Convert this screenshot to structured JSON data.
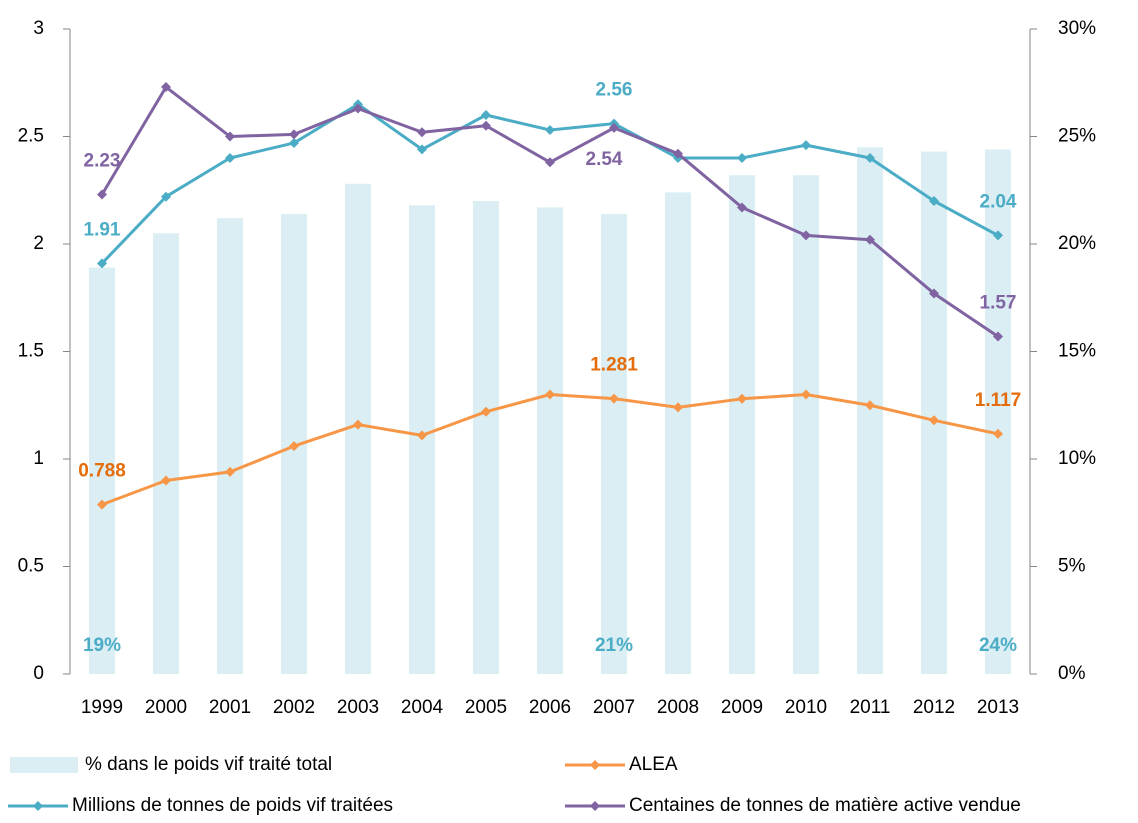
{
  "chart_data": {
    "type": "bar-line",
    "categories": [
      "1999",
      "2000",
      "2001",
      "2002",
      "2003",
      "2004",
      "2005",
      "2006",
      "2007",
      "2008",
      "2009",
      "2010",
      "2011",
      "2012",
      "2013"
    ],
    "ylim": [
      0,
      3
    ],
    "yticks": [
      0,
      0.5,
      1,
      1.5,
      2,
      2.5,
      3
    ],
    "y2lim": [
      0,
      30
    ],
    "y2ticks": [
      {
        "value": 0,
        "label": "0%"
      },
      {
        "value": 5,
        "label": "5%"
      },
      {
        "value": 10,
        "label": "10%"
      },
      {
        "value": 15,
        "label": "15%"
      },
      {
        "value": 20,
        "label": "20%"
      },
      {
        "value": 25,
        "label": "25%"
      },
      {
        "value": 30,
        "label": "30%"
      }
    ],
    "series": [
      {
        "name": "% dans le poids vif traité total",
        "type": "bar",
        "axis": "y2",
        "color": "#daeef3",
        "label_color": "#4bacc6",
        "values": [
          18.9,
          20.5,
          21.2,
          21.4,
          22.8,
          21.8,
          22.0,
          21.7,
          21.4,
          22.4,
          23.2,
          23.2,
          24.5,
          24.3,
          24.4
        ],
        "value_labels": [
          "19%",
          null,
          null,
          null,
          null,
          null,
          null,
          null,
          "21%",
          null,
          null,
          null,
          null,
          null,
          "24%"
        ]
      },
      {
        "name": "ALEA",
        "type": "line",
        "color": "#f79646",
        "label_color": "#e46c0a",
        "values": [
          0.788,
          0.9,
          0.94,
          1.06,
          1.16,
          1.11,
          1.22,
          1.3,
          1.281,
          1.24,
          1.28,
          1.3,
          1.25,
          1.18,
          1.117
        ],
        "value_labels": [
          "0.788",
          null,
          null,
          null,
          null,
          null,
          null,
          null,
          "1.281",
          null,
          null,
          null,
          null,
          null,
          "1.117"
        ]
      },
      {
        "name": "Millions de tonnes de poids vif traitées",
        "type": "line",
        "color": "#4bacc6",
        "label_color": "#4bacc6",
        "values": [
          1.91,
          2.22,
          2.4,
          2.47,
          2.65,
          2.44,
          2.6,
          2.53,
          2.56,
          2.4,
          2.4,
          2.46,
          2.4,
          2.2,
          2.04
        ],
        "value_labels": [
          "1.91",
          null,
          null,
          null,
          null,
          null,
          null,
          null,
          "2.56",
          null,
          null,
          null,
          null,
          null,
          "2.04"
        ]
      },
      {
        "name": "Centaines de tonnes de matière active vendue",
        "type": "line",
        "color": "#8064a2",
        "label_color": "#8064a2",
        "values": [
          2.23,
          2.73,
          2.5,
          2.51,
          2.63,
          2.52,
          2.55,
          2.38,
          2.54,
          2.42,
          2.17,
          2.04,
          2.02,
          1.77,
          1.57
        ],
        "value_labels": [
          "2.23",
          null,
          null,
          null,
          null,
          null,
          null,
          null,
          "2.54",
          null,
          null,
          null,
          null,
          null,
          "1.57"
        ]
      }
    ]
  }
}
